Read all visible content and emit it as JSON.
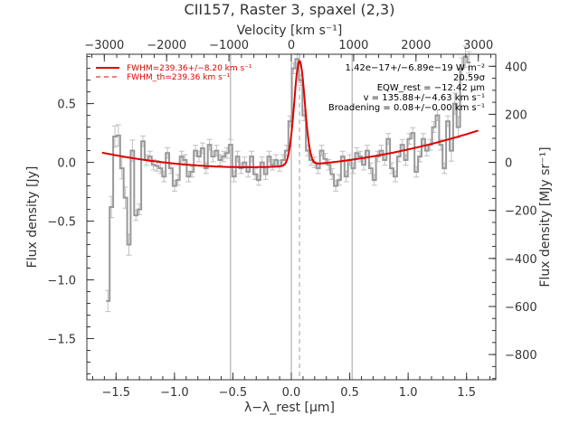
{
  "chart_data": {
    "type": "line",
    "title": "CII157, Raster 3, spaxel (2,3)",
    "xlabel": "λ−λ_rest [μm]",
    "ylabel": "Flux density [Jy]",
    "x2label": "Velocity [km s⁻¹]",
    "y2label": "Flux density [MJy sr⁻¹]",
    "xlim": [
      -1.75,
      1.75
    ],
    "ylim": [
      -1.85,
      0.92
    ],
    "x2lim": [
      -3280,
      3280
    ],
    "y2lim": [
      -905,
      450
    ],
    "grid": false,
    "legend_position": "top-left",
    "xticks": [
      {
        "value": -1.5,
        "label": "−1.5"
      },
      {
        "value": -1.0,
        "label": "−1.0"
      },
      {
        "value": -0.5,
        "label": "−0.5"
      },
      {
        "value": 0.0,
        "label": "0.0"
      },
      {
        "value": 0.5,
        "label": "0.5"
      },
      {
        "value": 1.0,
        "label": "1.0"
      },
      {
        "value": 1.5,
        "label": "1.5"
      }
    ],
    "yticks": [
      {
        "value": -1.5,
        "label": "−1.5"
      },
      {
        "value": -1.0,
        "label": "−1.0"
      },
      {
        "value": -0.5,
        "label": "−0.5"
      },
      {
        "value": 0.0,
        "label": "0.0"
      },
      {
        "value": 0.5,
        "label": "0.5"
      }
    ],
    "x2ticks": [
      {
        "value": -3000,
        "label": "−3000"
      },
      {
        "value": -2000,
        "label": "−2000"
      },
      {
        "value": -1000,
        "label": "−1000"
      },
      {
        "value": 0,
        "label": "0"
      },
      {
        "value": 1000,
        "label": "1000"
      },
      {
        "value": 2000,
        "label": "2000"
      },
      {
        "value": 3000,
        "label": "3000"
      }
    ],
    "y2ticks": [
      {
        "value": 400,
        "label": "400"
      },
      {
        "value": 200,
        "label": "200"
      },
      {
        "value": 0,
        "label": "0"
      },
      {
        "value": -200,
        "label": "−200"
      },
      {
        "value": -400,
        "label": "−400"
      },
      {
        "value": -600,
        "label": "−600"
      },
      {
        "value": -800,
        "label": "−800"
      }
    ],
    "vlines": [
      -0.52,
      0.0,
      0.52
    ],
    "dashed_vline": 0.07,
    "spectrum": {
      "x": [
        -1.57,
        -1.54,
        -1.51,
        -1.48,
        -1.45,
        -1.42,
        -1.39,
        -1.36,
        -1.33,
        -1.3,
        -1.27,
        -1.24,
        -1.21,
        -1.18,
        -1.15,
        -1.12,
        -1.09,
        -1.06,
        -1.03,
        -1.0,
        -0.97,
        -0.94,
        -0.91,
        -0.88,
        -0.85,
        -0.82,
        -0.79,
        -0.76,
        -0.73,
        -0.7,
        -0.67,
        -0.64,
        -0.61,
        -0.58,
        -0.55,
        -0.52,
        -0.49,
        -0.46,
        -0.43,
        -0.4,
        -0.37,
        -0.34,
        -0.31,
        -0.28,
        -0.25,
        -0.22,
        -0.19,
        -0.16,
        -0.13,
        -0.1,
        -0.07,
        -0.04,
        -0.01,
        0.02,
        0.05,
        0.08,
        0.11,
        0.14,
        0.17,
        0.2,
        0.23,
        0.26,
        0.29,
        0.32,
        0.35,
        0.38,
        0.41,
        0.44,
        0.47,
        0.5,
        0.53,
        0.56,
        0.59,
        0.62,
        0.65,
        0.68,
        0.71,
        0.74,
        0.77,
        0.8,
        0.83,
        0.86,
        0.89,
        0.92,
        0.95,
        0.98,
        1.01,
        1.04,
        1.07,
        1.1,
        1.13,
        1.16,
        1.19,
        1.22,
        1.25,
        1.28,
        1.31,
        1.34,
        1.37,
        1.4,
        1.43,
        1.46,
        1.49,
        1.52
      ],
      "y": [
        -1.18,
        -0.38,
        0.22,
        0.23,
        -0.05,
        -0.3,
        -0.7,
        0.1,
        -0.45,
        -0.4,
        0.18,
        0.02,
        0.05,
        -0.02,
        -0.03,
        -0.05,
        -0.12,
        0.08,
        -0.05,
        -0.2,
        -0.15,
        0.05,
        0.02,
        -0.12,
        -0.08,
        0.1,
        0.05,
        0.12,
        -0.05,
        0.15,
        0.05,
        0.1,
        0.02,
        0.05,
        0.08,
        0.15,
        -0.12,
        0.05,
        -0.05,
        0.0,
        -0.08,
        0.05,
        -0.1,
        -0.15,
        0.0,
        -0.1,
        0.05,
        -0.02,
        0.02,
        -0.03,
        0.02,
        0.1,
        0.35,
        0.8,
        0.88,
        0.7,
        0.4,
        0.1,
        0.02,
        0.0,
        -0.05,
        0.1,
        0.03,
        -0.02,
        -0.1,
        -0.2,
        -0.15,
        0.05,
        -0.12,
        0.02,
        -0.05,
        0.08,
        0.05,
        -0.02,
        0.1,
        -0.05,
        -0.15,
        0.05,
        0.1,
        0.02,
        0.2,
        -0.05,
        -0.12,
        0.05,
        0.15,
        0.02,
        0.2,
        0.25,
        -0.08,
        0.05,
        0.2,
        0.1,
        0.15,
        0.3,
        0.4,
        0.15,
        -0.05,
        0.35,
        0.1,
        0.5,
        0.3,
        0.8,
        0.9,
        0.85
      ]
    },
    "fit_model": {
      "baseline": {
        "a": -0.03,
        "b": 0.06,
        "c": 0.08
      },
      "line_center": 0.07,
      "line_amplitude": 0.89,
      "line_sigma": 0.045
    },
    "legend": [
      {
        "label": "FWHM=239.36+/−8.20 km s⁻¹",
        "style": "solid",
        "color": "#e00000"
      },
      {
        "label": "FWHM_th=239.36 km s⁻¹",
        "style": "dashed",
        "color": "#e00000"
      }
    ],
    "annotations": [
      "1.42e−17+/−6.89e−19 W m⁻²",
      "20.59σ",
      "EQW_rest = −12.42 μm",
      "v = 135.88+/−4.63 km s⁻¹",
      "Broadening = 0.08+/−0.00 km s⁻¹"
    ],
    "colors": {
      "data": "#999999",
      "fit": "#e00000",
      "vline": "#888888",
      "axis": "#333333"
    }
  }
}
